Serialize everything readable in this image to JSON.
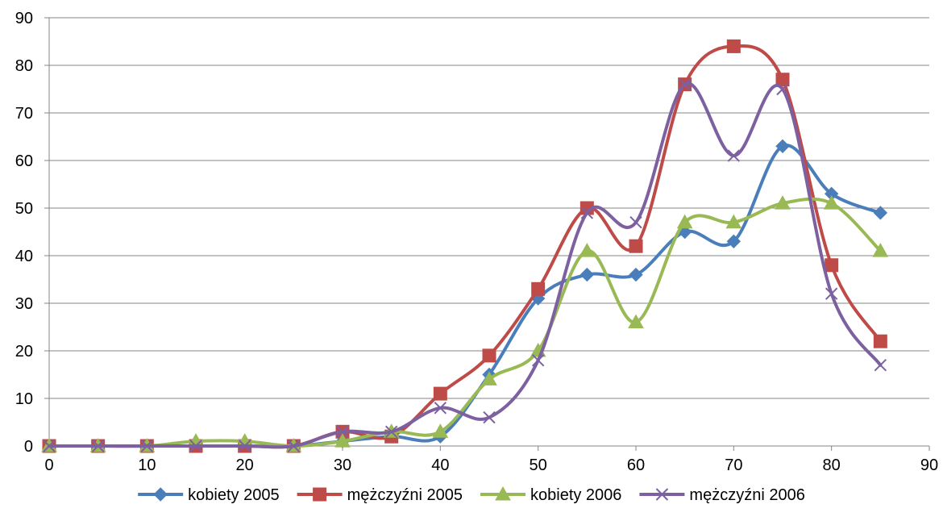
{
  "chart_data": {
    "type": "line",
    "title": "",
    "xlabel": "",
    "ylabel": "",
    "xlim": [
      0,
      90
    ],
    "ylim": [
      0,
      90
    ],
    "x_ticks": [
      "0",
      "10",
      "20",
      "30",
      "40",
      "50",
      "60",
      "70",
      "80",
      "90"
    ],
    "y_ticks": [
      "0",
      "10",
      "20",
      "30",
      "40",
      "50",
      "60",
      "70",
      "80",
      "90"
    ],
    "grid": "horizontal",
    "smooth": true,
    "legend_position": "bottom",
    "x": [
      0,
      5,
      10,
      15,
      20,
      25,
      30,
      35,
      40,
      45,
      50,
      55,
      60,
      65,
      70,
      75,
      80,
      85
    ],
    "series": [
      {
        "name": "kobiety 2005",
        "color": "#4a7ebb",
        "marker": "diamond",
        "values": [
          0,
          0,
          0,
          0,
          0,
          0,
          1,
          2,
          2,
          15,
          31,
          36,
          36,
          45,
          43,
          63,
          53,
          49
        ]
      },
      {
        "name": "mężczyźni 2005",
        "color": "#be4b48",
        "marker": "square",
        "values": [
          0,
          0,
          0,
          0,
          0,
          0,
          3,
          2,
          11,
          19,
          33,
          50,
          42,
          76,
          84,
          77,
          38,
          22
        ]
      },
      {
        "name": "kobiety 2006",
        "color": "#98b954",
        "marker": "triangle",
        "values": [
          0,
          0,
          0,
          1,
          1,
          0,
          1,
          3,
          3,
          14,
          20,
          41,
          26,
          47,
          47,
          51,
          51,
          41
        ]
      },
      {
        "name": "mężczyźni 2006",
        "color": "#7d60a0",
        "marker": "x",
        "values": [
          0,
          0,
          0,
          0,
          0,
          0,
          3,
          3,
          8,
          6,
          18,
          49,
          47,
          76,
          61,
          75,
          32,
          17
        ]
      }
    ]
  }
}
